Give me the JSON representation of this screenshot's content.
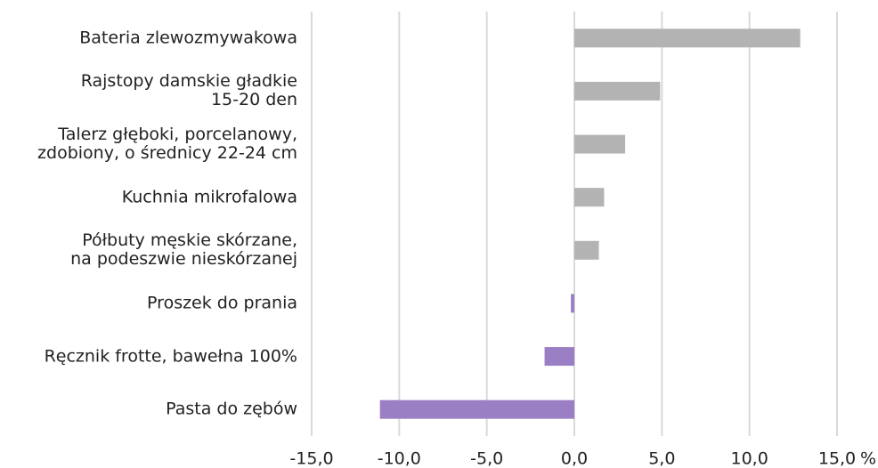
{
  "chart_data": {
    "type": "bar",
    "orientation": "horizontal",
    "categories": [
      "Bateria zlewozmywakowa",
      "Rajstopy damskie gładkie\n15-20 den",
      "Talerz głęboki, porcelanowy,\nzdobiony, o średnicy 22-24 cm",
      "Kuchnia mikrofalowa",
      "Półbuty męskie skórzane,\nna podeszwie nieskórzanej",
      "Proszek do prania",
      "Ręcznik frotte, bawełna 100%",
      "Pasta do zębów"
    ],
    "values": [
      12.9,
      4.9,
      2.9,
      1.7,
      1.4,
      -0.2,
      -1.7,
      -11.1
    ],
    "colors": [
      "#b3b3b3",
      "#b3b3b3",
      "#b3b3b3",
      "#b3b3b3",
      "#b3b3b3",
      "#9b7fc4",
      "#9b7fc4",
      "#9b7fc4"
    ],
    "xlim": [
      -15,
      15
    ],
    "xticks": [
      {
        "value": -15,
        "label": "-15,0"
      },
      {
        "value": -10,
        "label": "-10,0"
      },
      {
        "value": -5,
        "label": "-5,0"
      },
      {
        "value": 0,
        "label": "0,0"
      },
      {
        "value": 5,
        "label": "5,0"
      },
      {
        "value": 10,
        "label": "10,0"
      },
      {
        "value": 15,
        "label": "15,0"
      }
    ],
    "x_unit": "%",
    "grid": true,
    "grid_color": "#d9d9d9"
  }
}
